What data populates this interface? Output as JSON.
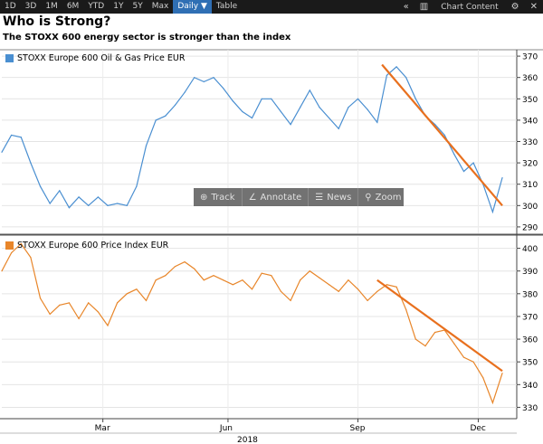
{
  "toolbar": {
    "ranges": [
      "1D",
      "3D",
      "1M",
      "6M",
      "YTD",
      "1Y",
      "5Y",
      "Max"
    ],
    "period": "Daily ▼",
    "table": "Table",
    "collapse_icon": "double-chevron-left-icon",
    "content_label": "Chart Content",
    "settings_icon": "gear-icon",
    "close_icon": "close-icon"
  },
  "header": {
    "title": "Who is Strong?",
    "subtitle": "The STOXX 600 energy sector is stronger than the index"
  },
  "tools": {
    "track": "Track",
    "annotate": "Annotate",
    "news": "News",
    "zoom": "Zoom"
  },
  "colors": {
    "oil": "#4a8fd1",
    "index": "#e8862a",
    "trend": "#e8701e"
  },
  "chart_data": [
    {
      "type": "line",
      "name": "oil",
      "legend": "STOXX Europe 600 Oil & Gas Price EUR",
      "ylim": [
        287,
        373
      ],
      "yticks": [
        290,
        300,
        310,
        320,
        330,
        340,
        350,
        360,
        370
      ],
      "x": [
        0,
        2,
        4,
        6,
        8,
        10,
        12,
        14,
        16,
        18,
        20,
        22,
        24,
        26,
        28,
        30,
        32,
        34,
        36,
        38,
        40,
        42,
        44,
        46,
        48,
        50,
        52,
        54,
        56,
        58,
        60,
        62,
        64,
        66,
        68,
        70,
        72,
        74,
        76,
        78,
        80,
        82,
        84,
        86,
        88,
        90,
        92,
        94,
        96,
        98,
        100,
        102,
        104
      ],
      "values": [
        325,
        333,
        332,
        320,
        309,
        301,
        307,
        299,
        304,
        300,
        304,
        300,
        301,
        300,
        309,
        328,
        340,
        342,
        347,
        353,
        360,
        358,
        360,
        355,
        349,
        344,
        341,
        350,
        350,
        344,
        338,
        346,
        354,
        346,
        341,
        336,
        346,
        350,
        345,
        339,
        361,
        365,
        360,
        350,
        342,
        338,
        333,
        324,
        316,
        320,
        310,
        297,
        313
      ],
      "trend": {
        "x": [
          79,
          104
        ],
        "y": [
          366,
          300
        ]
      }
    },
    {
      "type": "line",
      "name": "index",
      "legend": "STOXX Europe 600 Price Index EUR",
      "ylim": [
        325,
        405
      ],
      "yticks": [
        330,
        340,
        350,
        360,
        370,
        380,
        390,
        400
      ],
      "x": [
        0,
        2,
        4,
        6,
        8,
        10,
        12,
        14,
        16,
        18,
        20,
        22,
        24,
        26,
        28,
        30,
        32,
        34,
        36,
        38,
        40,
        42,
        44,
        46,
        48,
        50,
        52,
        54,
        56,
        58,
        60,
        62,
        64,
        66,
        68,
        70,
        72,
        74,
        76,
        78,
        80,
        82,
        84,
        86,
        88,
        90,
        92,
        94,
        96,
        98,
        100,
        102,
        104
      ],
      "values": [
        390,
        398,
        402,
        396,
        378,
        371,
        375,
        376,
        369,
        376,
        372,
        366,
        376,
        380,
        382,
        377,
        386,
        388,
        392,
        394,
        391,
        386,
        388,
        386,
        384,
        386,
        382,
        389,
        388,
        381,
        377,
        386,
        390,
        387,
        384,
        381,
        386,
        382,
        377,
        381,
        384,
        383,
        373,
        360,
        357,
        363,
        364,
        358,
        352,
        350,
        343,
        332,
        345
      ],
      "trend": {
        "x": [
          78,
          104
        ],
        "y": [
          386,
          346
        ]
      }
    }
  ],
  "xaxis": {
    "ticks": [
      {
        "x": 21,
        "label": "Mar"
      },
      {
        "x": 47,
        "label": "Jun"
      },
      {
        "x": 74,
        "label": "Sep"
      },
      {
        "x": 99,
        "label": "Dec"
      }
    ],
    "year": "2018",
    "range": [
      0,
      107
    ]
  }
}
